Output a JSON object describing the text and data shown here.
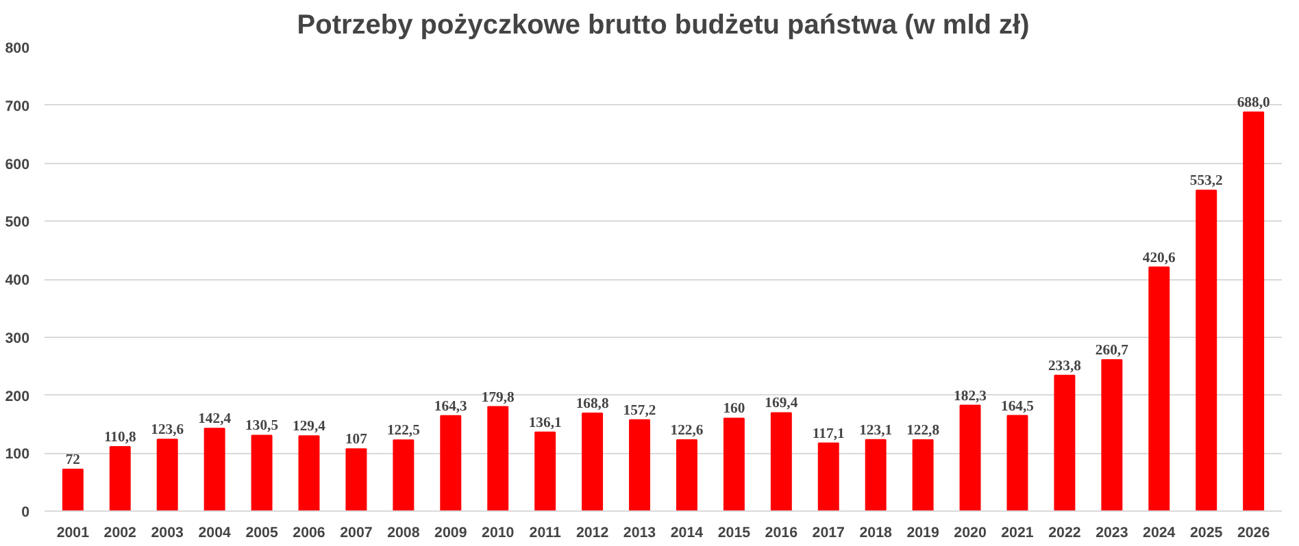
{
  "chart_data": {
    "type": "bar",
    "title": "Potrzeby pożyczkowe brutto budżetu państwa (w mld zł)",
    "categories": [
      "2001",
      "2002",
      "2003",
      "2004",
      "2005",
      "2006",
      "2007",
      "2008",
      "2009",
      "2010",
      "2011",
      "2012",
      "2013",
      "2014",
      "2015",
      "2016",
      "2017",
      "2018",
      "2019",
      "2020",
      "2021",
      "2022",
      "2023",
      "2024",
      "2025",
      "2026"
    ],
    "values": [
      72,
      110.8,
      123.6,
      142.4,
      130.5,
      129.4,
      107,
      122.5,
      164.3,
      179.8,
      136.1,
      168.8,
      157.2,
      122.6,
      160,
      169.4,
      117.1,
      123.1,
      122.8,
      182.3,
      164.5,
      233.8,
      260.7,
      420.6,
      553.2,
      688.0
    ],
    "value_labels": [
      "72",
      "110,8",
      "123,6",
      "142,4",
      "130,5",
      "129,4",
      "107",
      "122,5",
      "164,3",
      "179,8",
      "136,1",
      "168,8",
      "157,2",
      "122,6",
      "160",
      "169,4",
      "117,1",
      "123,1",
      "122,8",
      "182,3",
      "164,5",
      "233,8",
      "260,7",
      "420,6",
      "553,2",
      "688,0"
    ],
    "color": "#ff0000",
    "ylim": [
      0,
      800
    ],
    "yticks": [
      0,
      100,
      200,
      300,
      400,
      500,
      600,
      700,
      800
    ],
    "grid": "y"
  }
}
